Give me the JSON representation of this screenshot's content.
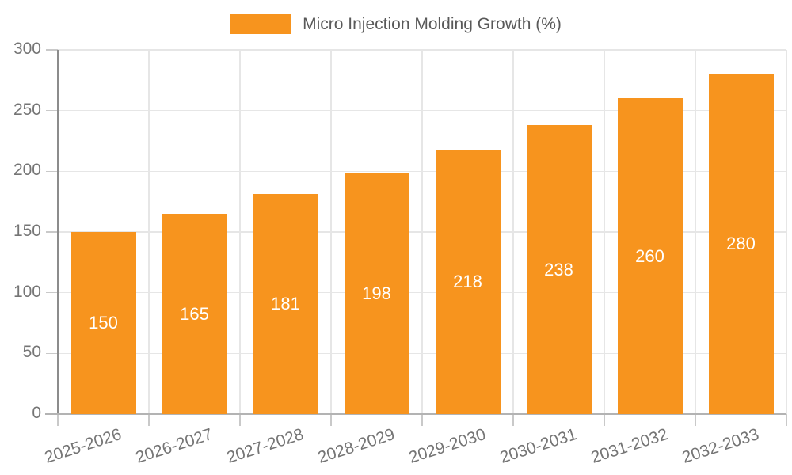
{
  "legend": {
    "label": "Micro Injection Molding Growth (%)"
  },
  "chart_data": {
    "type": "bar",
    "title": "Micro Injection Molding Growth (%)",
    "categories": [
      "2025-2026",
      "2026-2027",
      "2027-2028",
      "2028-2029",
      "2029-2030",
      "2030-2031",
      "2031-2032",
      "2032-2033"
    ],
    "values": [
      150,
      165,
      181,
      198,
      218,
      238,
      260,
      280
    ],
    "yticks": [
      0,
      50,
      100,
      150,
      200,
      250,
      300
    ],
    "ylim": [
      0,
      300
    ],
    "grid": true,
    "legend_position": "top",
    "value_labels": "centered-inside-bars-white",
    "colors": {
      "bar": "#F7941E",
      "grid": "#E6E6E6",
      "y_axis_line": "#8C8C8C",
      "x_axis_line": "#B3B3B3",
      "tick_mark": "#C9C9C9",
      "tick_label": "#757575",
      "legend_text": "#595959",
      "value_label": "#FFFFFF",
      "background": "#FFFFFF"
    }
  }
}
